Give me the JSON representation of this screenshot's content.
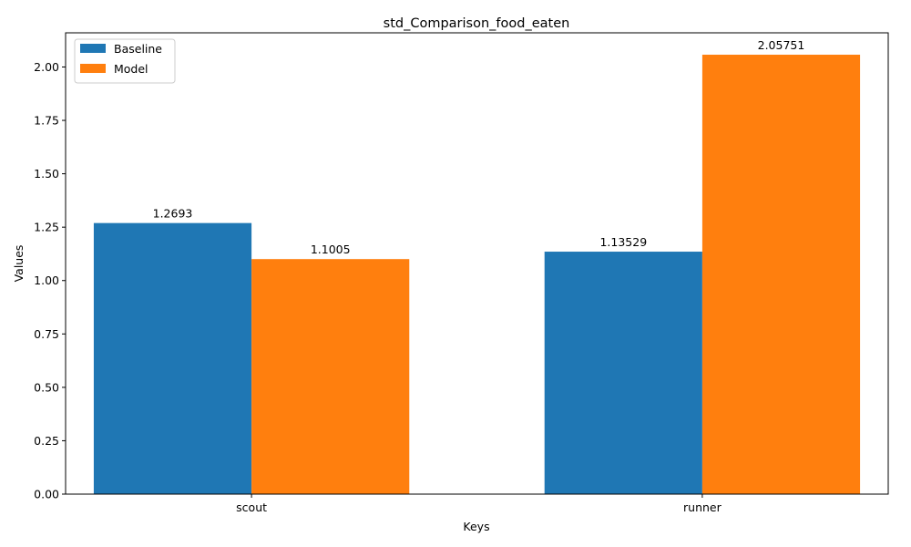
{
  "chart_data": {
    "type": "bar",
    "title": "std_Comparison_food_eaten",
    "xlabel": "Keys",
    "ylabel": "Values",
    "categories": [
      "scout",
      "runner"
    ],
    "series": [
      {
        "name": "Baseline",
        "values": [
          1.2693,
          1.13529
        ],
        "labels": [
          "1.2693",
          "1.13529"
        ],
        "color": "#1f77b4"
      },
      {
        "name": "Model",
        "values": [
          1.1005,
          2.05751
        ],
        "labels": [
          "1.1005",
          "2.05751"
        ],
        "color": "#ff7f0e"
      }
    ],
    "ylim": [
      0,
      2.16
    ],
    "yticks": [
      "0.00",
      "0.25",
      "0.50",
      "0.75",
      "1.00",
      "1.25",
      "1.50",
      "1.75",
      "2.00"
    ],
    "grid": false,
    "legend_position": "top-left"
  }
}
